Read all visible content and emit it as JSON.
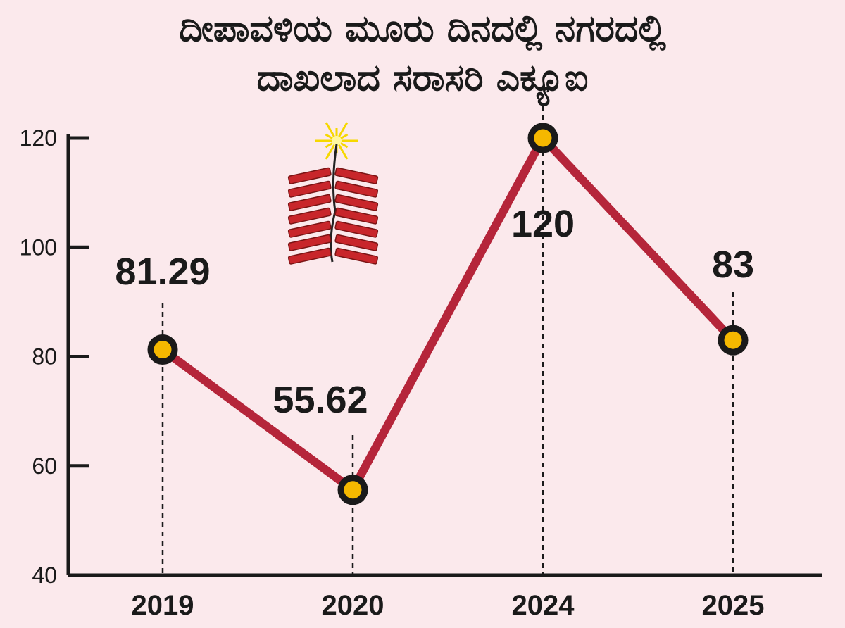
{
  "title_line1": "ದೀಪಾವಳಿಯ ಮೂರು ದಿನದಲ್ಲಿ ನಗರದಲ್ಲಿ",
  "title_line2": "ದಾಖಲಾದ ಸರಾಸರಿ ಎಕ್ಯೂಐ",
  "colors": {
    "background": "#fbe9ec",
    "line": "#b5253a",
    "marker_fill": "#f5b800",
    "marker_stroke": "#1a1a1a",
    "axis": "#1a1a1a"
  },
  "chart_data": {
    "type": "line",
    "title": "ದೀಪಾವಳಿಯ ಮೂರು ದಿನದಲ್ಲಿ ನಗರದಲ್ಲಿ ದಾಖಲಾದ ಸರಾಸರಿ ಎಕ್ಯೂಐ",
    "xlabel": "",
    "ylabel": "",
    "categories": [
      "2019",
      "2020",
      "2024",
      "2025"
    ],
    "values": [
      81.29,
      55.62,
      120,
      83
    ],
    "data_labels": [
      "81.29",
      "55.62",
      "120",
      "83"
    ],
    "yticks": [
      "40",
      "60",
      "80",
      "100",
      "120"
    ],
    "ylim": [
      40,
      120
    ],
    "grid": false,
    "legend": "none",
    "decoration": "firecracker-icon"
  }
}
